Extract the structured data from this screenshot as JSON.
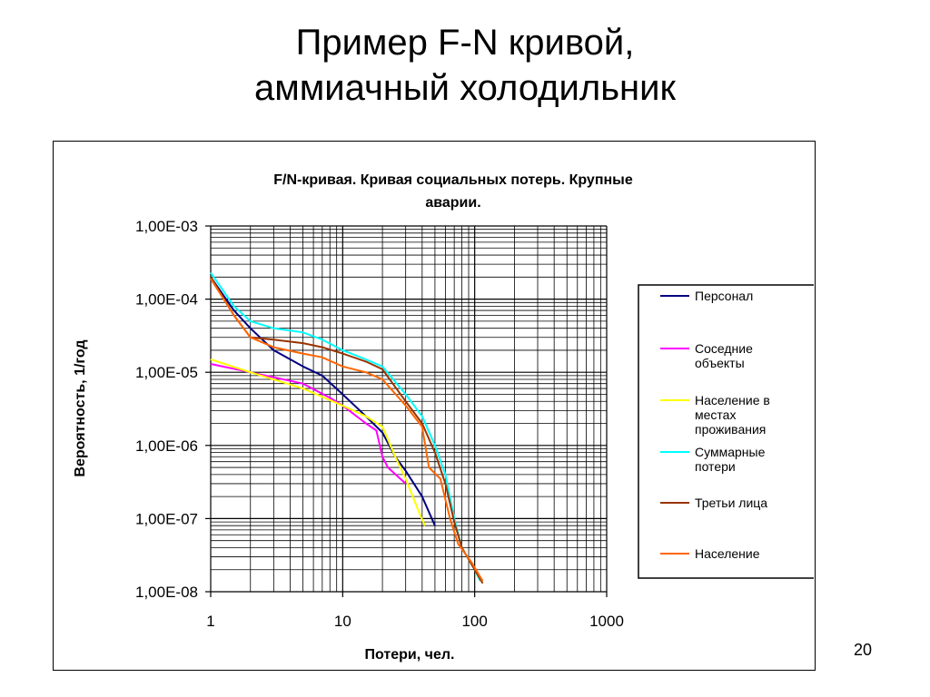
{
  "slide": {
    "title_line1": "Пример F-N кривой,",
    "title_line2": "аммиачный холодильник",
    "page_number": "20"
  },
  "chart_data": {
    "type": "line",
    "title_line1": "F/N-кривая. Кривая социальных потерь. Крупные",
    "title_line2": "аварии.",
    "xlabel": "Потери, чел.",
    "ylabel": "Вероятность, 1/год",
    "x_scale": "log",
    "y_scale": "log",
    "xlim": [
      1,
      1000
    ],
    "ylim": [
      1e-08,
      0.001
    ],
    "x_ticks": [
      1,
      10,
      100,
      1000
    ],
    "x_tick_labels": [
      "1",
      "10",
      "100",
      "1000"
    ],
    "y_ticks": [
      0.001,
      0.0001,
      1e-05,
      1e-06,
      1e-07,
      1e-08
    ],
    "y_tick_labels": [
      "1,00E-03",
      "1,00E-04",
      "1,00E-05",
      "1,00E-06",
      "1,00E-07",
      "1,00E-08"
    ],
    "grid": true,
    "legend_position": "right",
    "series": [
      {
        "name": "Персонал",
        "color": "#000080",
        "points": [
          [
            1,
            0.0002
          ],
          [
            1.5,
            7e-05
          ],
          [
            2,
            4e-05
          ],
          [
            3,
            2e-05
          ],
          [
            5,
            1.2e-05
          ],
          [
            7,
            9e-06
          ],
          [
            10,
            5e-06
          ],
          [
            15,
            2.5e-06
          ],
          [
            20,
            1.5e-06
          ],
          [
            25,
            7e-07
          ],
          [
            30,
            4.5e-07
          ],
          [
            40,
            2e-07
          ],
          [
            50,
            8e-08
          ]
        ]
      },
      {
        "name": "Соседние объекты",
        "color": "#ff00ff",
        "points": [
          [
            1,
            1.3e-05
          ],
          [
            2,
            1e-05
          ],
          [
            5,
            7e-06
          ],
          [
            8,
            4.5e-06
          ],
          [
            10,
            3.5e-06
          ],
          [
            15,
            2e-06
          ],
          [
            18,
            1.6e-06
          ],
          [
            20,
            7e-07
          ],
          [
            22,
            5e-07
          ],
          [
            30,
            3e-07
          ]
        ]
      },
      {
        "name": "Население в местах проживания",
        "color": "#ffff00",
        "points": [
          [
            1,
            1.5e-05
          ],
          [
            2,
            1e-05
          ],
          [
            5,
            6e-06
          ],
          [
            10,
            3.5e-06
          ],
          [
            15,
            2.5e-06
          ],
          [
            20,
            1.8e-06
          ],
          [
            25,
            7e-07
          ],
          [
            30,
            3.5e-07
          ],
          [
            38,
            1.2e-07
          ],
          [
            42,
            8e-08
          ]
        ]
      },
      {
        "name": "Суммарные потери",
        "color": "#00ffff",
        "points": [
          [
            1,
            0.00023
          ],
          [
            1.5,
            8e-05
          ],
          [
            2,
            5e-05
          ],
          [
            3,
            4e-05
          ],
          [
            5,
            3.5e-05
          ],
          [
            7,
            2.8e-05
          ],
          [
            10,
            2e-05
          ],
          [
            15,
            1.5e-05
          ],
          [
            20,
            1.2e-05
          ],
          [
            30,
            5e-06
          ],
          [
            40,
            2.5e-06
          ],
          [
            50,
            1e-06
          ],
          [
            60,
            4e-07
          ],
          [
            70,
            1e-07
          ],
          [
            80,
            4e-08
          ],
          [
            100,
            2e-08
          ],
          [
            110,
            1.4e-08
          ]
        ]
      },
      {
        "name": "Третьи лица",
        "color": "#993300",
        "points": [
          [
            1,
            0.0002
          ],
          [
            1.5,
            6e-05
          ],
          [
            2,
            3e-05
          ],
          [
            3,
            2.8e-05
          ],
          [
            5,
            2.5e-05
          ],
          [
            7,
            2.2e-05
          ],
          [
            10,
            1.8e-05
          ],
          [
            15,
            1.4e-05
          ],
          [
            20,
            1.1e-05
          ],
          [
            30,
            4e-06
          ],
          [
            40,
            2e-06
          ],
          [
            50,
            8e-07
          ],
          [
            60,
            3e-07
          ],
          [
            70,
            9e-08
          ],
          [
            80,
            4e-08
          ],
          [
            100,
            2e-08
          ],
          [
            115,
            1.3e-08
          ]
        ]
      },
      {
        "name": "Население",
        "color": "#ff6600",
        "points": [
          [
            1,
            0.00019
          ],
          [
            1.5,
            6e-05
          ],
          [
            2,
            3e-05
          ],
          [
            3,
            2.2e-05
          ],
          [
            5,
            1.8e-05
          ],
          [
            7,
            1.6e-05
          ],
          [
            10,
            1.2e-05
          ],
          [
            15,
            1e-05
          ],
          [
            20,
            8e-06
          ],
          [
            30,
            3.5e-06
          ],
          [
            40,
            1.8e-06
          ],
          [
            45,
            5e-07
          ],
          [
            55,
            3.5e-07
          ],
          [
            65,
            1e-07
          ],
          [
            75,
            4.5e-08
          ],
          [
            95,
            2.5e-08
          ],
          [
            115,
            1.4e-08
          ]
        ]
      }
    ]
  }
}
